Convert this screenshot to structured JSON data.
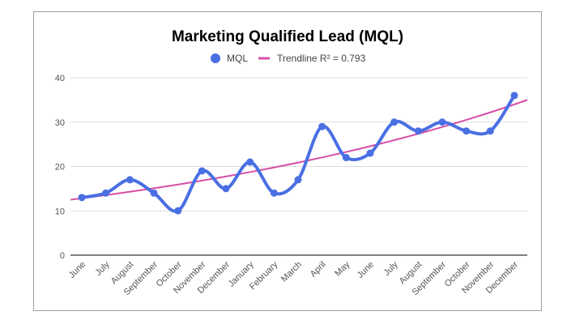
{
  "chart_data": {
    "type": "line",
    "title": "Marketing Qualified Lead (MQL)",
    "categories": [
      "June",
      "July",
      "August",
      "September",
      "October",
      "November",
      "December",
      "January",
      "February",
      "March",
      "April",
      "May",
      "June",
      "July",
      "August",
      "September",
      "October",
      "November",
      "December"
    ],
    "series": [
      {
        "name": "MQL",
        "values": [
          13,
          14,
          17,
          14,
          10,
          19,
          15,
          21,
          14,
          17,
          29,
          22,
          23,
          30,
          28,
          30,
          28,
          28,
          36
        ]
      }
    ],
    "trendline": {
      "label": "Trendline R² = 0.793",
      "start": 12.5,
      "end": 35
    },
    "ylim": [
      0,
      40
    ],
    "yticks": [
      0,
      10,
      20,
      30,
      40
    ],
    "grid": true,
    "legend_position": "top",
    "colors": {
      "series": "#4a6fe3",
      "trendline": "#d64fa8",
      "grid": "#dddddd",
      "axis": "#333333"
    }
  }
}
